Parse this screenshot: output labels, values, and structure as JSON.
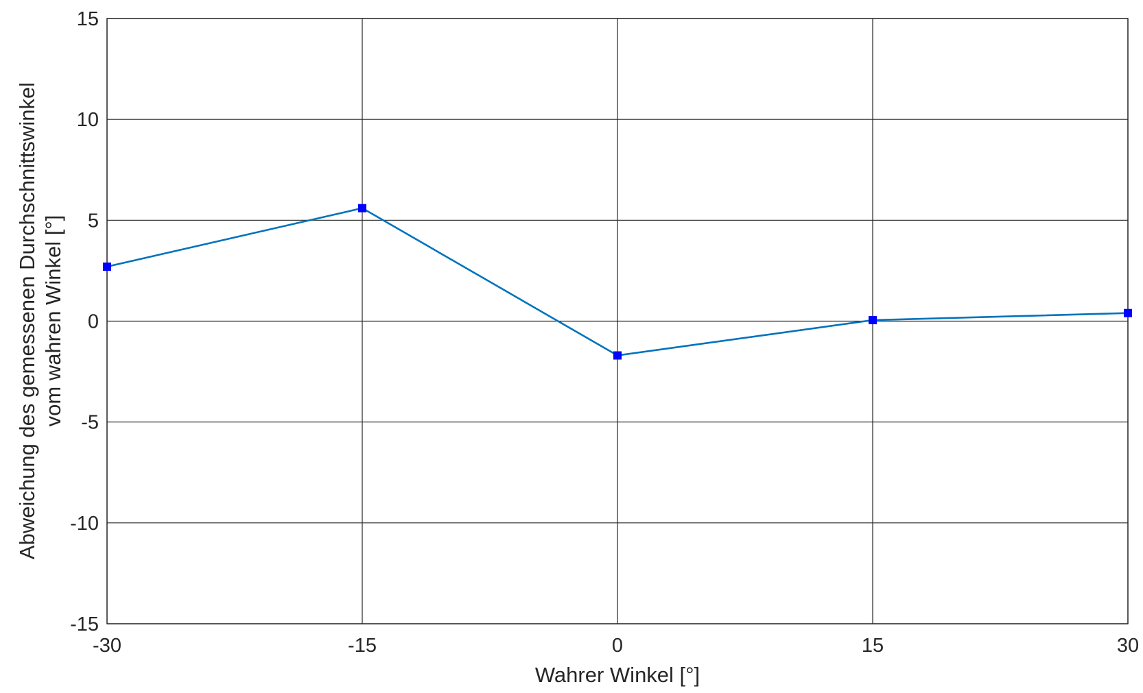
{
  "chart_data": {
    "type": "line",
    "title": "",
    "xlabel": "Wahrer Winkel [°]",
    "ylabel_lines": [
      "Abweichung des gemessenen Durchschnittswinkel",
      "vom wahren Winkel [°]"
    ],
    "xlim": [
      -30,
      30
    ],
    "ylim": [
      -15,
      15
    ],
    "xticks": [
      -30,
      -15,
      0,
      15,
      30
    ],
    "yticks": [
      -15,
      -10,
      -5,
      0,
      5,
      10,
      15
    ],
    "grid": true,
    "series": [
      {
        "x": [
          -30,
          -15,
          0,
          15,
          30
        ],
        "y": [
          2.7,
          5.6,
          -1.7,
          0.05,
          0.4
        ],
        "line_color": "#0072BD",
        "marker_color": "#0000FF",
        "marker": "square"
      }
    ]
  }
}
